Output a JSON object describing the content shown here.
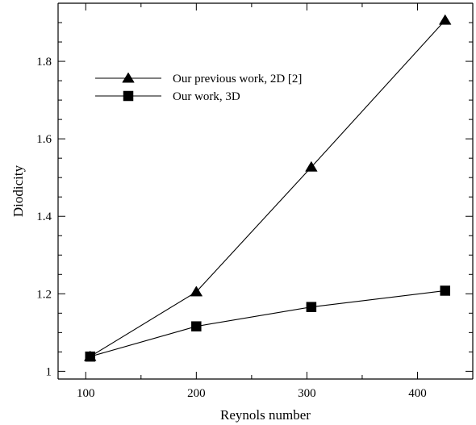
{
  "chart_data": {
    "type": "line",
    "xlabel": "Reynols number",
    "ylabel": "Diodicity",
    "xlim": [
      75,
      450
    ],
    "ylim": [
      0.98,
      1.95
    ],
    "x_ticks": [
      100,
      200,
      300,
      400
    ],
    "y_ticks": [
      1,
      1.2,
      1.4,
      1.6,
      1.8
    ],
    "x_tick_labels": [
      "100",
      "200",
      "300",
      "400"
    ],
    "y_tick_labels": [
      "1",
      "1.2",
      "1.4",
      "1.6",
      "1.8"
    ],
    "grid": false,
    "legend_position": "top-left",
    "series": [
      {
        "name": "Our previous work, 2D [2]",
        "marker": "triangle",
        "x": [
          104,
          200,
          304,
          425
        ],
        "y": [
          1.038,
          1.205,
          1.527,
          1.906
        ]
      },
      {
        "name": "Our work, 3D",
        "marker": "square",
        "x": [
          104,
          200,
          304,
          425
        ],
        "y": [
          1.038,
          1.116,
          1.166,
          1.208
        ]
      }
    ]
  }
}
